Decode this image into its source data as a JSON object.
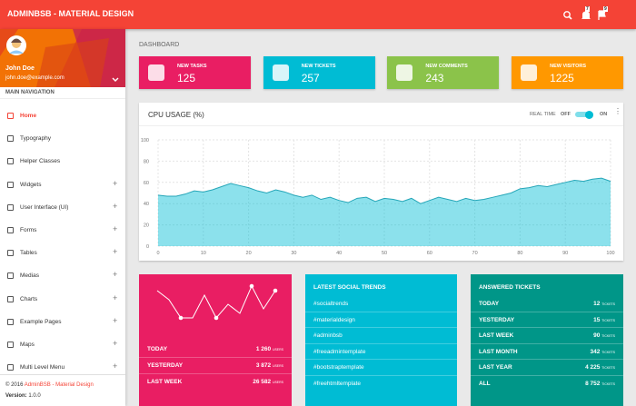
{
  "header": {
    "title": "ADMINBSB - MATERIAL DESIGN",
    "notification_count": "7",
    "task_count": "9"
  },
  "user": {
    "name": "John Doe",
    "email": "john.doe@example.com"
  },
  "sidebar": {
    "heading": "MAIN NAVIGATION",
    "items": [
      {
        "label": "Home",
        "expandable": false,
        "active": true
      },
      {
        "label": "Typography",
        "expandable": false,
        "active": false
      },
      {
        "label": "Helper Classes",
        "expandable": false,
        "active": false
      },
      {
        "label": "Widgets",
        "expandable": true,
        "active": false
      },
      {
        "label": "User Interface (UI)",
        "expandable": true,
        "active": false
      },
      {
        "label": "Forms",
        "expandable": true,
        "active": false
      },
      {
        "label": "Tables",
        "expandable": true,
        "active": false
      },
      {
        "label": "Medias",
        "expandable": true,
        "active": false
      },
      {
        "label": "Charts",
        "expandable": true,
        "active": false
      },
      {
        "label": "Example Pages",
        "expandable": true,
        "active": false
      },
      {
        "label": "Maps",
        "expandable": true,
        "active": false
      },
      {
        "label": "Multi Level Menu",
        "expandable": true,
        "active": false
      }
    ],
    "footer": {
      "copyright": "© 2016",
      "brand": "AdminBSB - Material Design",
      "version_label": "Version:",
      "version": "1.0.0"
    }
  },
  "breadcrumb": "DASHBOARD",
  "info_boxes": [
    {
      "label": "NEW TASKS",
      "value": 125,
      "color": "#e91e63"
    },
    {
      "label": "NEW TICKETS",
      "value": 257,
      "color": "#00bcd4"
    },
    {
      "label": "NEW COMMENTS",
      "value": 243,
      "color": "#8bc34a"
    },
    {
      "label": "NEW VISITORS",
      "value": 1225,
      "color": "#ff9800"
    }
  ],
  "cpu_card": {
    "title": "CPU USAGE (%)",
    "realtime_label": "REAL TIME",
    "off_label": "OFF",
    "on_label": "ON",
    "realtime_on": true,
    "chart_data": {
      "type": "area",
      "color": "#00bcd4",
      "x": [
        0,
        2,
        4,
        6,
        8,
        10,
        12,
        14,
        16,
        18,
        20,
        22,
        24,
        26,
        28,
        30,
        32,
        34,
        36,
        38,
        40,
        42,
        44,
        46,
        48,
        50,
        52,
        54,
        56,
        58,
        60,
        62,
        64,
        66,
        68,
        70,
        72,
        74,
        76,
        78,
        80,
        82,
        84,
        86,
        88,
        90,
        92,
        94,
        96,
        98,
        100
      ],
      "values": [
        48,
        47,
        47,
        49,
        52,
        51,
        53,
        56,
        59,
        57,
        55,
        52,
        50,
        53,
        51,
        48,
        46,
        48,
        44,
        46,
        43,
        41,
        45,
        46,
        42,
        45,
        44,
        42,
        45,
        40,
        43,
        46,
        44,
        42,
        45,
        43,
        44,
        46,
        48,
        50,
        54,
        55,
        57,
        56,
        58,
        60,
        62,
        61,
        63,
        64,
        61
      ],
      "xlim": [
        0,
        100
      ],
      "ylim": [
        0,
        100
      ],
      "xticks": [
        0,
        10,
        20,
        30,
        40,
        50,
        60,
        70,
        80,
        90,
        100
      ],
      "yticks": [
        0,
        20,
        40,
        60,
        80,
        100
      ],
      "grid": true
    }
  },
  "sales_card": {
    "chart_data": {
      "type": "line",
      "color": "#ffffff",
      "values": [
        8,
        6,
        2,
        2,
        7,
        2,
        5,
        3,
        9,
        4,
        8
      ],
      "ylim": [
        0,
        10
      ]
    },
    "rows": [
      {
        "label": "TODAY",
        "value": "1 260",
        "unit": "USERS"
      },
      {
        "label": "YESTERDAY",
        "value": "3 872",
        "unit": "USERS"
      },
      {
        "label": "LAST WEEK",
        "value": "26 582",
        "unit": "USERS"
      }
    ]
  },
  "social_card": {
    "title": "LATEST SOCIAL TRENDS",
    "items": [
      "#socialtrends",
      "#materialdesign",
      "#adminbsb",
      "#freeadmintemplate",
      "#bootstraptemplate",
      "#freehtmltemplate"
    ]
  },
  "tickets_card": {
    "title": "ANSWERED TICKETS",
    "rows": [
      {
        "label": "TODAY",
        "value": "12",
        "unit": "TICKETS"
      },
      {
        "label": "YESTERDAY",
        "value": "15",
        "unit": "TICKETS"
      },
      {
        "label": "LAST WEEK",
        "value": "90",
        "unit": "TICKETS"
      },
      {
        "label": "LAST MONTH",
        "value": "342",
        "unit": "TICKETS"
      },
      {
        "label": "LAST YEAR",
        "value": "4 225",
        "unit": "TICKETS"
      },
      {
        "label": "ALL",
        "value": "8 752",
        "unit": "TICKETS"
      }
    ]
  }
}
